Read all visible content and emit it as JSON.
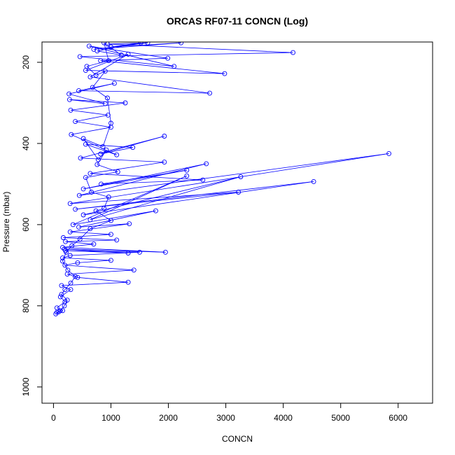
{
  "chart_data": {
    "type": "line",
    "title": "ORCAS RF07-11 CONCN (Log)",
    "xlabel": "CONCN",
    "ylabel": "Pressure (mbar)",
    "xlim": [
      -200,
      6600
    ],
    "ylim": [
      1040,
      150
    ],
    "y_reversed": true,
    "grid": false,
    "legend": "none",
    "x_ticks": [
      0,
      1000,
      2000,
      3000,
      4000,
      5000,
      6000
    ],
    "y_ticks": [
      200,
      400,
      600,
      800,
      1000
    ],
    "colors": {
      "series": "#0000ff"
    },
    "series": [
      {
        "marker": "open-circle",
        "points": [
          [
            40,
            820
          ],
          [
            90,
            815
          ],
          [
            160,
            812
          ],
          [
            60,
            805
          ],
          [
            200,
            790
          ],
          [
            120,
            778
          ],
          [
            300,
            760
          ],
          [
            140,
            750
          ],
          [
            1300,
            742
          ],
          [
            420,
            730
          ],
          [
            240,
            722
          ],
          [
            1400,
            712
          ],
          [
            200,
            700
          ],
          [
            420,
            694
          ],
          [
            1000,
            688
          ],
          [
            160,
            682
          ],
          [
            290,
            676
          ],
          [
            1500,
            668
          ],
          [
            210,
            664
          ],
          [
            1300,
            670
          ],
          [
            190,
            660
          ],
          [
            1950,
            668
          ],
          [
            160,
            656
          ],
          [
            700,
            648
          ],
          [
            210,
            642
          ],
          [
            1100,
            638
          ],
          [
            170,
            632
          ],
          [
            1000,
            624
          ],
          [
            290,
            618
          ],
          [
            1320,
            598
          ],
          [
            440,
            606
          ],
          [
            1780,
            566
          ],
          [
            340,
            600
          ],
          [
            2320,
            480
          ],
          [
            640,
            588
          ],
          [
            3260,
            482
          ],
          [
            520,
            576
          ],
          [
            4530,
            494
          ],
          [
            380,
            562
          ],
          [
            3220,
            520
          ],
          [
            290,
            548
          ],
          [
            5840,
            425
          ],
          [
            450,
            528
          ],
          [
            2660,
            450
          ],
          [
            520,
            512
          ],
          [
            2320,
            466
          ],
          [
            830,
            500
          ],
          [
            2600,
            490
          ],
          [
            640,
            474
          ],
          [
            1930,
            446
          ],
          [
            470,
            436
          ],
          [
            1930,
            382
          ],
          [
            820,
            426
          ],
          [
            1380,
            410
          ],
          [
            560,
            402
          ],
          [
            1100,
            428
          ],
          [
            310,
            378
          ],
          [
            1000,
            360
          ],
          [
            380,
            346
          ],
          [
            950,
            330
          ],
          [
            300,
            318
          ],
          [
            1250,
            300
          ],
          [
            280,
            292
          ],
          [
            900,
            302
          ],
          [
            270,
            278
          ],
          [
            1060,
            252
          ],
          [
            440,
            270
          ],
          [
            2720,
            276
          ],
          [
            640,
            236
          ],
          [
            1300,
            180
          ],
          [
            560,
            220
          ],
          [
            2980,
            228
          ],
          [
            820,
            196
          ],
          [
            1990,
            190
          ],
          [
            620,
            160
          ],
          [
            2100,
            210
          ],
          [
            460,
            186
          ],
          [
            4170,
            176
          ],
          [
            940,
            155
          ],
          [
            1640,
            152
          ],
          [
            700,
            168
          ],
          [
            2220,
            152
          ],
          [
            1000,
            162
          ],
          [
            1520,
            152
          ],
          [
            760,
            172
          ],
          [
            1180,
            182
          ],
          [
            880,
            152
          ],
          [
            960,
            196
          ],
          [
            580,
            210
          ],
          [
            740,
            232
          ],
          [
            900,
            222
          ],
          [
            680,
            262
          ],
          [
            940,
            288
          ],
          [
            1000,
            350
          ],
          [
            860,
            408
          ],
          [
            520,
            388
          ],
          [
            780,
            440
          ],
          [
            920,
            416
          ],
          [
            760,
            452
          ],
          [
            1120,
            470
          ],
          [
            560,
            484
          ],
          [
            660,
            520
          ],
          [
            960,
            532
          ],
          [
            880,
            560
          ],
          [
            740,
            566
          ],
          [
            1000,
            590
          ],
          [
            640,
            610
          ],
          [
            460,
            636
          ],
          [
            320,
            652
          ],
          [
            220,
            668
          ],
          [
            160,
            690
          ],
          [
            250,
            712
          ],
          [
            380,
            728
          ],
          [
            300,
            744
          ],
          [
            200,
            760
          ],
          [
            140,
            772
          ],
          [
            240,
            786
          ],
          [
            190,
            800
          ],
          [
            120,
            812
          ],
          [
            60,
            816
          ]
        ]
      }
    ]
  }
}
